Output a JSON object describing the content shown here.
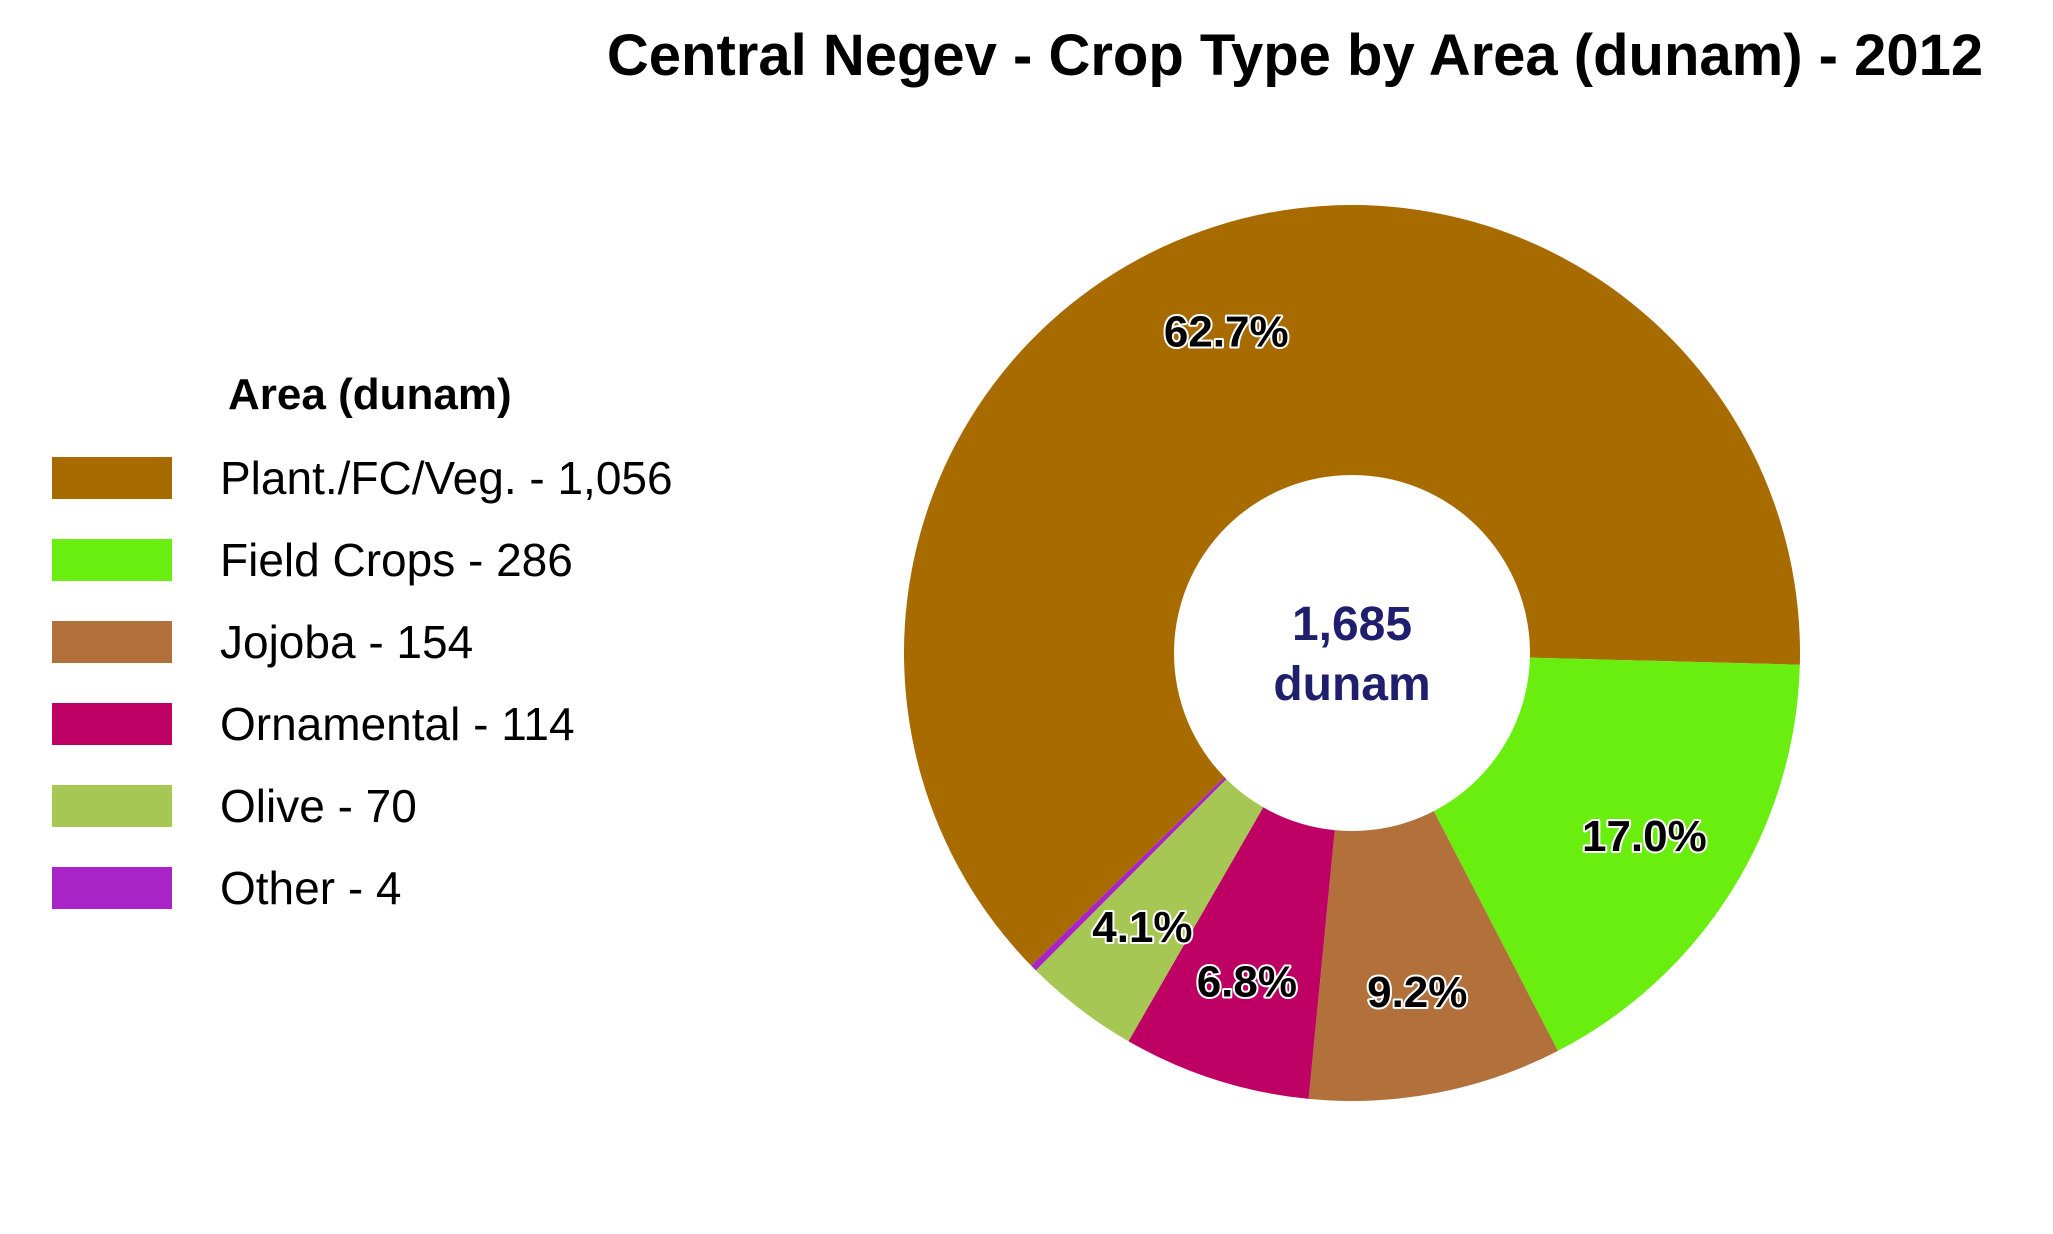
{
  "chart_data": {
    "type": "pie",
    "subtype": "donut",
    "title": "Central Negev - Crop Type by Area (dunam) - 2012",
    "legend_title": "Area (dunam)",
    "legend_position": "left",
    "center_label": {
      "line1": "1,685",
      "line2": "dunam"
    },
    "slices": [
      {
        "label": "Plant./FC/Veg. - 1,056",
        "name": "Plant./FC/Veg.",
        "value": 1056,
        "percent_label": "62.7%",
        "color": "#A86B00"
      },
      {
        "label": "Field Crops - 286",
        "name": "Field Crops",
        "value": 286,
        "percent_label": "17.0%",
        "color": "#6AEE10"
      },
      {
        "label": "Jojoba - 154",
        "name": "Jojoba",
        "value": 154,
        "percent_label": "9.2%",
        "color": "#B2703A"
      },
      {
        "label": "Ornamental - 114",
        "name": "Ornamental",
        "value": 114,
        "percent_label": "6.8%",
        "color": "#BE0064"
      },
      {
        "label": "Olive - 70",
        "name": "Olive",
        "value": 70,
        "percent_label": "4.1%",
        "color": "#A6C753"
      },
      {
        "label": "Other - 4",
        "name": "Other",
        "value": 4,
        "percent_label": "",
        "color": "#A824C6"
      }
    ]
  }
}
